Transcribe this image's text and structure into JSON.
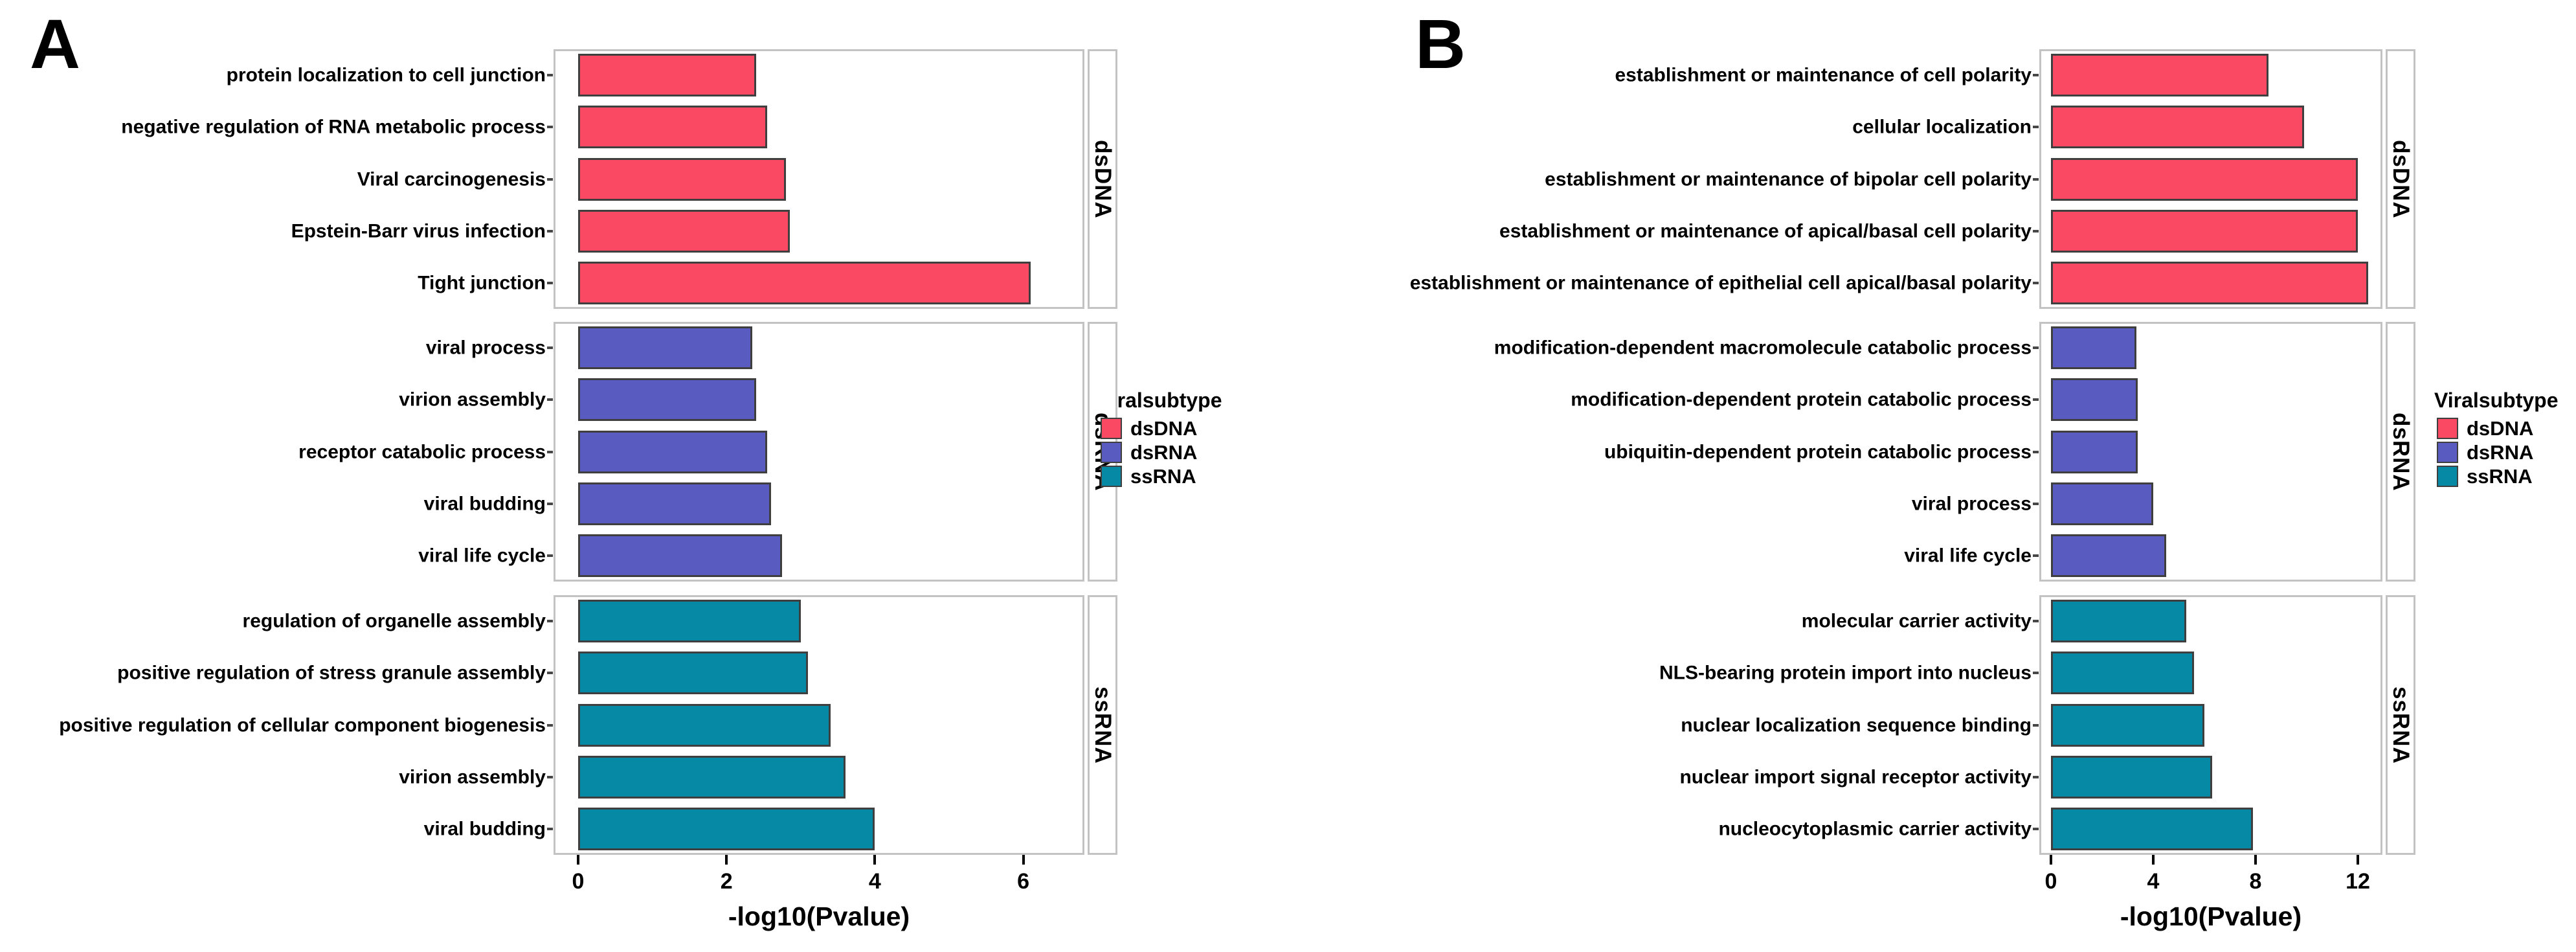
{
  "chart_data": [
    {
      "type": "bar",
      "panel_label": "A",
      "orientation": "horizontal",
      "xlabel": "-log10(Pvalue)",
      "xticks": [
        0,
        2,
        4,
        6
      ],
      "xlim": [
        0,
        6.8
      ],
      "grid": false,
      "legend": {
        "title": "Viralsubtype",
        "position": "right",
        "entries": [
          {
            "label": "dsDNA",
            "color": "#FA4963"
          },
          {
            "label": "dsRNA",
            "color": "#5A5BC0"
          },
          {
            "label": "ssRNA",
            "color": "#0589A5"
          }
        ]
      },
      "facets": [
        {
          "name": "dsDNA",
          "color": "#FA4963",
          "categories": [
            "protein localization to cell junction",
            "negative regulation of RNA metabolic process",
            "Viral carcinogenesis",
            "Epstein-Barr virus infection",
            "Tight junction"
          ],
          "values": [
            2.4,
            2.55,
            2.8,
            2.85,
            6.1
          ]
        },
        {
          "name": "dsRNA",
          "color": "#5A5BC0",
          "categories": [
            "viral process",
            "virion assembly",
            "receptor catabolic process",
            "viral budding",
            "viral life cycle"
          ],
          "values": [
            2.35,
            2.4,
            2.55,
            2.6,
            2.75
          ]
        },
        {
          "name": "ssRNA",
          "color": "#0589A5",
          "categories": [
            "regulation of organelle assembly",
            "positive regulation of stress granule assembly",
            "positive regulation of cellular component biogenesis",
            "virion assembly",
            "viral budding"
          ],
          "values": [
            3.0,
            3.1,
            3.4,
            3.6,
            4.0
          ]
        }
      ]
    },
    {
      "type": "bar",
      "panel_label": "B",
      "orientation": "horizontal",
      "xlabel": "-log10(Pvalue)",
      "xticks": [
        0,
        4,
        8,
        12
      ],
      "xlim": [
        0,
        13
      ],
      "grid": false,
      "legend": {
        "title": "Viralsubtype",
        "position": "right",
        "entries": [
          {
            "label": "dsDNA",
            "color": "#FA4963"
          },
          {
            "label": "dsRNA",
            "color": "#5A5BC0"
          },
          {
            "label": "ssRNA",
            "color": "#0589A5"
          }
        ]
      },
      "facets": [
        {
          "name": "dsDNA",
          "color": "#FA4963",
          "categories": [
            "establishment or maintenance of cell polarity",
            "cellular localization",
            "establishment or maintenance of bipolar cell polarity",
            "establishment or maintenance of apical/basal cell polarity",
            "establishment or maintenance of epithelial cell apical/basal polarity"
          ],
          "values": [
            8.5,
            9.9,
            12.0,
            12.0,
            12.4
          ]
        },
        {
          "name": "dsRNA",
          "color": "#5A5BC0",
          "categories": [
            "modification-dependent macromolecule catabolic process",
            "modification-dependent protein catabolic process",
            "ubiquitin-dependent protein catabolic process",
            "viral process",
            "viral life cycle"
          ],
          "values": [
            3.35,
            3.4,
            3.4,
            4.0,
            4.5
          ]
        },
        {
          "name": "ssRNA",
          "color": "#0589A5",
          "categories": [
            "molecular carrier activity",
            "NLS-bearing protein import into nucleus",
            "nuclear localization sequence binding",
            "nuclear import signal receptor activity",
            "nucleocytoplasmic carrier activity"
          ],
          "values": [
            5.3,
            5.6,
            6.0,
            6.3,
            7.9
          ]
        }
      ]
    }
  ]
}
